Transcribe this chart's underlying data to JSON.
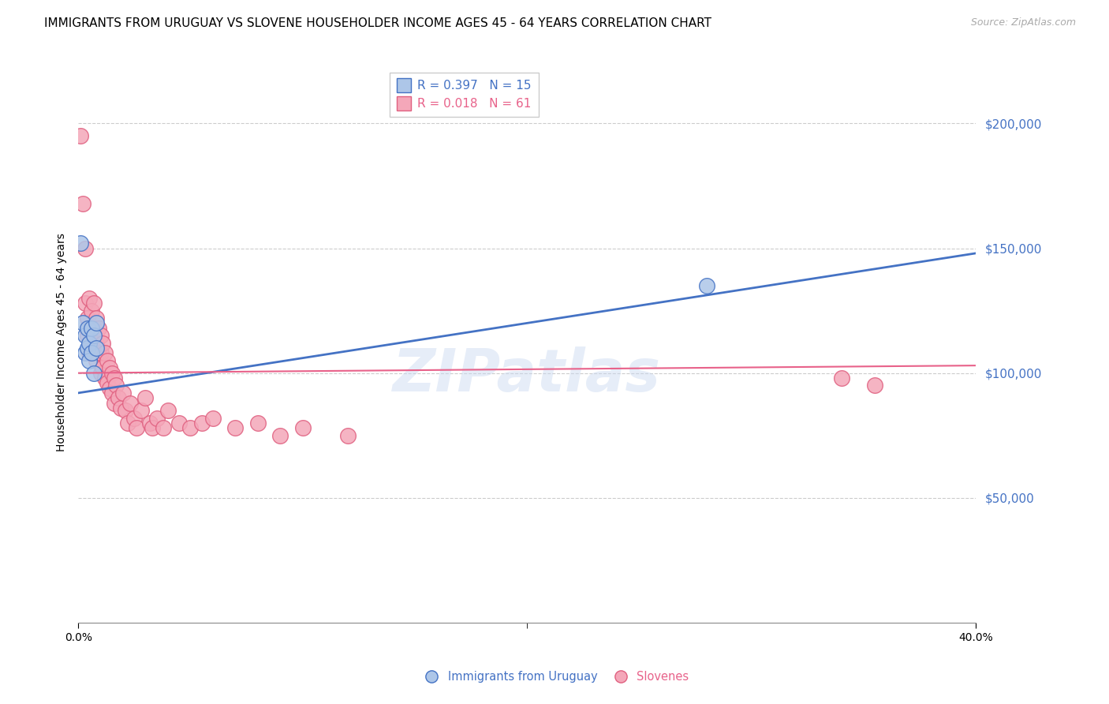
{
  "title": "IMMIGRANTS FROM URUGUAY VS SLOVENE HOUSEHOLDER INCOME AGES 45 - 64 YEARS CORRELATION CHART",
  "source": "Source: ZipAtlas.com",
  "ylabel": "Householder Income Ages 45 - 64 years",
  "y_tick_values": [
    50000,
    100000,
    150000,
    200000
  ],
  "y_axis_color": "#4472c4",
  "legend_label1": "Immigrants from Uruguay",
  "legend_label2": "Slovenes",
  "watermark": "ZIPatlas",
  "uruguay_x": [
    0.001,
    0.002,
    0.003,
    0.003,
    0.004,
    0.004,
    0.005,
    0.005,
    0.006,
    0.006,
    0.007,
    0.007,
    0.008,
    0.008,
    0.28
  ],
  "uruguay_y": [
    152000,
    120000,
    115000,
    108000,
    118000,
    110000,
    112000,
    105000,
    118000,
    108000,
    115000,
    100000,
    120000,
    110000,
    135000
  ],
  "slovene_x": [
    0.001,
    0.002,
    0.003,
    0.003,
    0.004,
    0.004,
    0.005,
    0.005,
    0.005,
    0.006,
    0.006,
    0.007,
    0.007,
    0.007,
    0.008,
    0.008,
    0.008,
    0.009,
    0.009,
    0.01,
    0.01,
    0.01,
    0.011,
    0.011,
    0.012,
    0.012,
    0.013,
    0.013,
    0.014,
    0.014,
    0.015,
    0.015,
    0.016,
    0.016,
    0.017,
    0.018,
    0.019,
    0.02,
    0.021,
    0.022,
    0.023,
    0.025,
    0.026,
    0.028,
    0.03,
    0.032,
    0.033,
    0.035,
    0.038,
    0.04,
    0.045,
    0.05,
    0.055,
    0.06,
    0.07,
    0.08,
    0.09,
    0.1,
    0.12,
    0.34,
    0.355
  ],
  "slovene_y": [
    195000,
    168000,
    128000,
    150000,
    122000,
    115000,
    130000,
    118000,
    108000,
    125000,
    112000,
    128000,
    118000,
    108000,
    122000,
    112000,
    105000,
    118000,
    108000,
    115000,
    108000,
    100000,
    112000,
    102000,
    108000,
    98000,
    105000,
    96000,
    102000,
    94000,
    100000,
    92000,
    98000,
    88000,
    95000,
    90000,
    86000,
    92000,
    85000,
    80000,
    88000,
    82000,
    78000,
    85000,
    90000,
    80000,
    78000,
    82000,
    78000,
    85000,
    80000,
    78000,
    80000,
    82000,
    78000,
    80000,
    75000,
    78000,
    75000,
    98000,
    95000
  ],
  "blue_line_x0": 0.0,
  "blue_line_x1": 0.4,
  "blue_line_y0": 92000,
  "blue_line_y1": 148000,
  "pink_line_x0": 0.0,
  "pink_line_x1": 0.4,
  "pink_line_y0": 100000,
  "pink_line_y1": 103000,
  "blue_line_color": "#4472c4",
  "pink_line_color": "#e8628a",
  "blue_dot_facecolor": "#adc6e8",
  "blue_dot_edgecolor": "#4472c4",
  "pink_dot_facecolor": "#f4a7b9",
  "pink_dot_edgecolor": "#e06080",
  "xlim": [
    0.0,
    0.4
  ],
  "ylim": [
    0,
    225000
  ],
  "title_fontsize": 11,
  "source_fontsize": 9,
  "axis_label_fontsize": 10,
  "tick_fontsize": 10,
  "legend_fontsize": 11
}
